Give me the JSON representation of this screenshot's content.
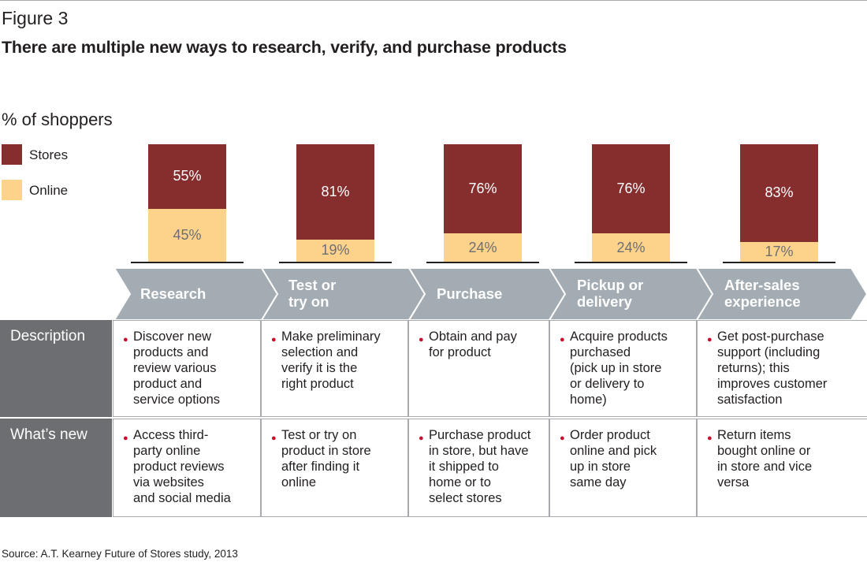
{
  "header": {
    "figure_label": "Figure 3",
    "title": "There are multiple new ways to research, verify, and purchase products"
  },
  "chart_data": {
    "type": "bar",
    "stacked": true,
    "unit_label": "% of shoppers",
    "categories": [
      "Research",
      "Test or try on",
      "Purchase",
      "Pickup or delivery",
      "After-sales experience"
    ],
    "series": [
      {
        "name": "Stores",
        "values": [
          55,
          81,
          76,
          76,
          83
        ],
        "labels": [
          "55%",
          "81%",
          "76%",
          "76%",
          "83%"
        ],
        "color": "#862d2d"
      },
      {
        "name": "Online",
        "values": [
          45,
          19,
          24,
          24,
          17
        ],
        "labels": [
          "45%",
          "19%",
          "24%",
          "24%",
          "17%"
        ],
        "color": "#fdd38c"
      }
    ],
    "ylim": [
      0,
      100
    ],
    "legend_position": "top-left"
  },
  "stages": {
    "labels": [
      [
        "Research"
      ],
      [
        "Test or",
        "try on"
      ],
      [
        "Purchase"
      ],
      [
        "Pickup or",
        "delivery"
      ],
      [
        "After-sales",
        "experience"
      ]
    ],
    "color": "#a3acb2"
  },
  "table": {
    "row_headers": [
      "Description",
      "What’s new"
    ],
    "description": [
      [
        "Discover new",
        "products and",
        "review various",
        "product and",
        "service options"
      ],
      [
        "Make preliminary",
        "selection and",
        "verify it is the",
        "right product"
      ],
      [
        "Obtain and pay",
        "for product"
      ],
      [
        "Acquire products",
        "purchased",
        "(pick up in store",
        "or delivery to",
        "home)"
      ],
      [
        "Get post-purchase",
        "support (including",
        "returns); this",
        "improves customer",
        "satisfaction"
      ]
    ],
    "whats_new": [
      [
        "Access third-",
        "party online",
        "product reviews",
        "via websites",
        "and social media"
      ],
      [
        "Test or try on",
        "product in store",
        "after finding it",
        "online"
      ],
      [
        "Purchase product",
        "in store, but have",
        "it shipped to",
        "home or to",
        "select stores"
      ],
      [
        "Order product",
        "online and pick",
        "up in store",
        "same day"
      ],
      [
        "Return items",
        "bought online or",
        "in store and vice",
        "versa"
      ]
    ],
    "bullet_color": "#c8102e",
    "header_color": "#6d6e71"
  },
  "footer": {
    "source": "Source: A.T. Kearney Future of Stores study, 2013"
  }
}
